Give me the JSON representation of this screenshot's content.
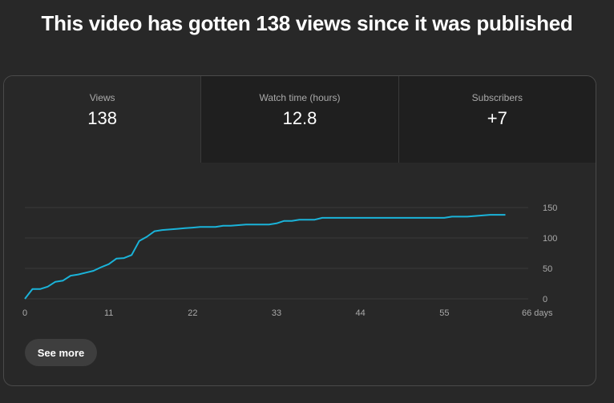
{
  "headline": "This video has gotten 138 views since it was published",
  "tabs": [
    {
      "label": "Views",
      "value": "138",
      "active": true
    },
    {
      "label": "Watch time (hours)",
      "value": "12.8",
      "active": false
    },
    {
      "label": "Subscribers",
      "value": "+7",
      "active": false
    }
  ],
  "see_more_label": "See more",
  "colors": {
    "line": "#1ab3d9",
    "grid": "#3a3a3a",
    "background": "#282828"
  },
  "chart_data": {
    "type": "line",
    "x_tick_labels": [
      "0",
      "11",
      "22",
      "33",
      "44",
      "55",
      "66 days"
    ],
    "x_ticks": [
      0,
      11,
      22,
      33,
      44,
      55,
      66
    ],
    "y_ticks": [
      0,
      50,
      100,
      150
    ],
    "y_tick_labels": [
      "0",
      "50",
      "100",
      "150"
    ],
    "xlim": [
      0,
      66
    ],
    "ylim": [
      0,
      150
    ],
    "grid": true,
    "y_axis_side": "right",
    "series": [
      {
        "values": [
          [
            0,
            0
          ],
          [
            1,
            16
          ],
          [
            2,
            16
          ],
          [
            3,
            20
          ],
          [
            4,
            28
          ],
          [
            5,
            30
          ],
          [
            6,
            38
          ],
          [
            7,
            40
          ],
          [
            8,
            43
          ],
          [
            9,
            46
          ],
          [
            10,
            52
          ],
          [
            11,
            57
          ],
          [
            12,
            66
          ],
          [
            13,
            67
          ],
          [
            14,
            72
          ],
          [
            15,
            95
          ],
          [
            16,
            102
          ],
          [
            17,
            111
          ],
          [
            18,
            113
          ],
          [
            19,
            114
          ],
          [
            20,
            115
          ],
          [
            21,
            116
          ],
          [
            22,
            117
          ],
          [
            23,
            118
          ],
          [
            24,
            118
          ],
          [
            25,
            118
          ],
          [
            26,
            120
          ],
          [
            27,
            120
          ],
          [
            28,
            121
          ],
          [
            29,
            122
          ],
          [
            30,
            122
          ],
          [
            31,
            122
          ],
          [
            32,
            122
          ],
          [
            33,
            124
          ],
          [
            34,
            128
          ],
          [
            35,
            128
          ],
          [
            36,
            130
          ],
          [
            37,
            130
          ],
          [
            38,
            130
          ],
          [
            39,
            133
          ],
          [
            40,
            133
          ],
          [
            45,
            133
          ],
          [
            50,
            133
          ],
          [
            55,
            133
          ],
          [
            56,
            135
          ],
          [
            58,
            135
          ],
          [
            60,
            137
          ],
          [
            61,
            138
          ],
          [
            63,
            138
          ]
        ]
      }
    ]
  }
}
